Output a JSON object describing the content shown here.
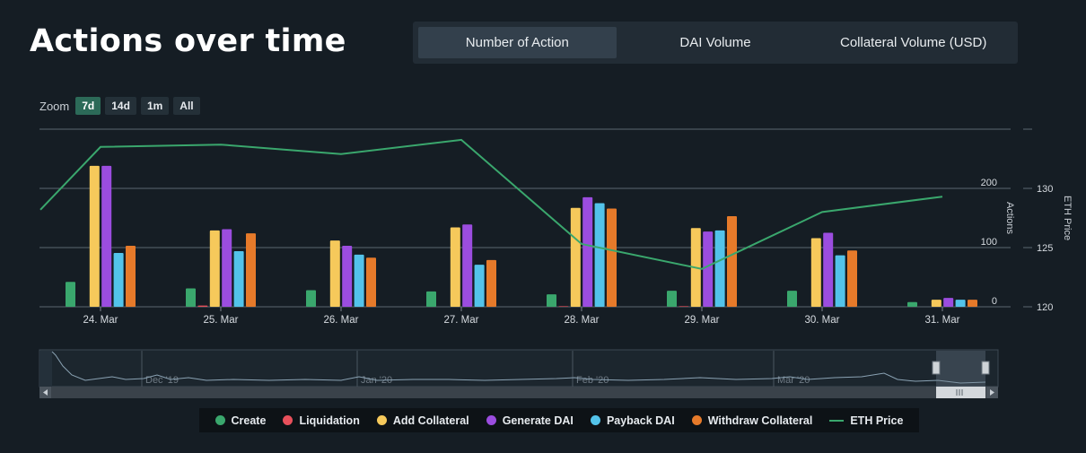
{
  "header": {
    "title": "Actions over time"
  },
  "tabs": [
    {
      "label": "Number of Action",
      "active": true
    },
    {
      "label": "DAI Volume",
      "active": false
    },
    {
      "label": "Collateral Volume (USD)",
      "active": false
    }
  ],
  "zoom": {
    "label": "Zoom",
    "options": [
      {
        "label": "7d",
        "active": true
      },
      {
        "label": "14d",
        "active": false
      },
      {
        "label": "1m",
        "active": false
      },
      {
        "label": "All",
        "active": false
      }
    ]
  },
  "colors": {
    "create": "#3aa76d",
    "liquidation": "#e8505b",
    "add_collateral": "#f6c95b",
    "generate_dai": "#9b4ddf",
    "payback_dai": "#53c3ea",
    "withdraw_collateral": "#e67a2a",
    "eth_price": "#3aa76d"
  },
  "chart_data": {
    "type": "bar",
    "categories": [
      "24. Mar",
      "25. Mar",
      "26. Mar",
      "27. Mar",
      "28. Mar",
      "29. Mar",
      "30. Mar",
      "31. Mar"
    ],
    "series": [
      {
        "name": "Create",
        "color": "#3aa76d",
        "values": [
          42,
          31,
          28,
          26,
          21,
          27,
          27,
          8
        ]
      },
      {
        "name": "Liquidation",
        "color": "#e8505b",
        "values": [
          0,
          2,
          0,
          0,
          1,
          1,
          0,
          0
        ]
      },
      {
        "name": "Add Collateral",
        "color": "#f6c95b",
        "values": [
          238,
          129,
          112,
          134,
          167,
          133,
          116,
          12
        ]
      },
      {
        "name": "Generate DAI",
        "color": "#9b4ddf",
        "values": [
          238,
          131,
          103,
          139,
          185,
          127,
          125,
          15
        ]
      },
      {
        "name": "Payback DAI",
        "color": "#53c3ea",
        "values": [
          91,
          94,
          88,
          71,
          175,
          129,
          87,
          12
        ]
      },
      {
        "name": "Withdraw Collateral",
        "color": "#e67a2a",
        "values": [
          103,
          124,
          83,
          79,
          166,
          153,
          95,
          12
        ]
      }
    ],
    "line": {
      "name": "ETH Price",
      "color": "#3aa76d",
      "x": [
        -0.5,
        0,
        1,
        2,
        3,
        4,
        5,
        6,
        7
      ],
      "values": [
        128.2,
        133.5,
        133.7,
        132.9,
        134.1,
        125.3,
        123.2,
        128.0,
        129.3
      ]
    },
    "y_left": {
      "label": "Actions",
      "ticks": [
        "0",
        "100",
        "200"
      ],
      "ylim": [
        0,
        300
      ]
    },
    "y_right": {
      "label": "ETH Price",
      "ticks": [
        "120",
        "125",
        "130"
      ],
      "ylim": [
        120,
        135
      ]
    },
    "navigator": {
      "labels": [
        "Dec '19",
        "Jan '20",
        "Feb '20",
        "Mar '20"
      ]
    },
    "legend": {
      "position": "bottom"
    }
  }
}
